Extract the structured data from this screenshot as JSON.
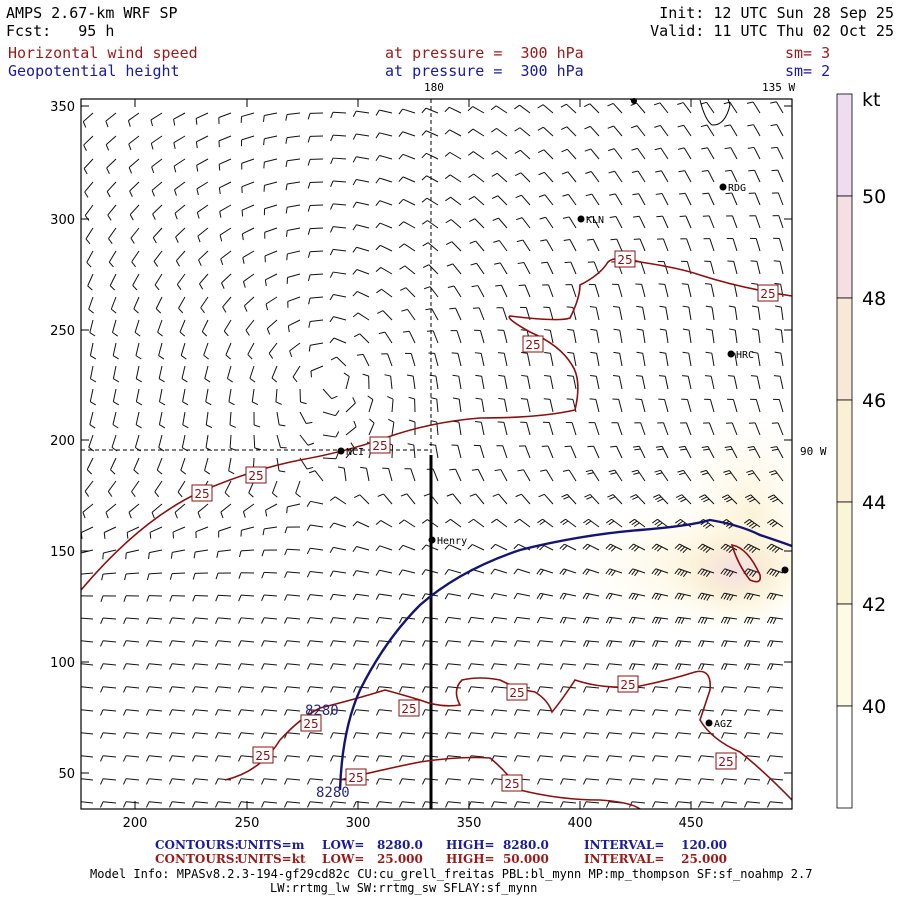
{
  "header": {
    "model": "AMPS 2.67-km WRF SP",
    "forecast": "Fcst:   95 h",
    "init": "Init: 12 UTC Sun 28 Sep 25",
    "valid": "Valid: 11 UTC Thu 02 Oct 25",
    "field1": {
      "name": "Horizontal wind speed",
      "level": "at pressure =  300 hPa",
      "sm": "sm= 3"
    },
    "field2": {
      "name": "Geopotential height",
      "level": "at pressure =  300 hPa",
      "sm": "sm= 2"
    }
  },
  "map": {
    "x_ticks": [
      "200",
      "250",
      "300",
      "350",
      "400",
      "450"
    ],
    "y_ticks": [
      "350",
      "300",
      "250",
      "200",
      "150",
      "100",
      "50"
    ],
    "meridian_labels": {
      "top": "180",
      "top_right": "135 W",
      "right": "90 W"
    },
    "stations": [
      {
        "name": "RDG"
      },
      {
        "name": "KLN"
      },
      {
        "name": "HRC"
      },
      {
        "name": "NCI"
      },
      {
        "name": "Henry"
      },
      {
        "name": "AGZ"
      }
    ],
    "wind_contour_label": "25",
    "height_contour_label": "8280"
  },
  "colorbar": {
    "unit": "kt",
    "labels": [
      "50",
      "48",
      "46",
      "44",
      "42",
      "40"
    ],
    "colors": [
      "#f0dcf0",
      "#f5dfe5",
      "#f8e8d8",
      "#faf0d6",
      "#fbf5d8",
      "#fdfbe3",
      "#ffffff"
    ]
  },
  "footer": {
    "line1": {
      "label": "CONTOURS:",
      "units": "UNITS=m",
      "low": "LOW=   8280.0",
      "high": "HIGH=  8280.0",
      "interval": "INTERVAL=    120.00"
    },
    "line2": {
      "label": "CONTOURS:",
      "units": "UNITS=kt",
      "low": "LOW=   25.000",
      "high": "HIGH=  50.000",
      "interval": "INTERVAL=    25.000"
    },
    "info1": "Model Info: MPASv8.2.3-194-gf29cd82c CU:cu_grell_freitas PBL:bl_mynn MP:mp_thompson SF:sf_noahmp 2.7",
    "info2": "LW:rrtmg_lw SW:rrtmg_sw SFLAY:sf_mynn"
  }
}
